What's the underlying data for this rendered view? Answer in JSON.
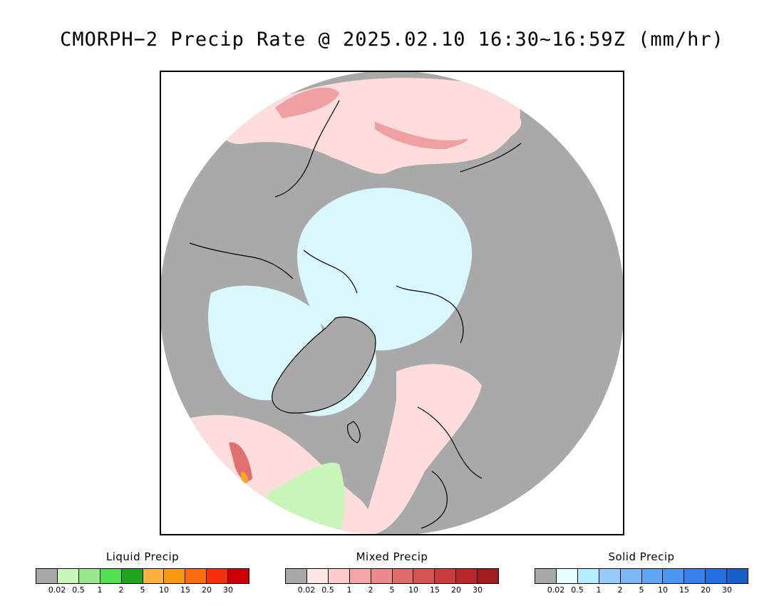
{
  "title": "CMORPH−2 Precip Rate @ 2025.02.10 16:30~16:59Z (mm/hr)",
  "map": {
    "projection": "polar-stereographic-north",
    "colors": {
      "land_no_precip": "#a9a9a9",
      "solid_light": "#d8f8fb",
      "mixed_light": "#fddcdc",
      "mixed_mid": "#f0a0a0",
      "mixed_heavy": "#e07070",
      "liquid_light": "#c8f5b8",
      "liquid_heavy": "#f6a623",
      "coastline": "#000000"
    }
  },
  "legends": [
    {
      "title": "Liquid Precip",
      "colors": [
        "#a9a9a9",
        "#c8f5b8",
        "#96e98a",
        "#52df52",
        "#1ea51e",
        "#fbb13a",
        "#f99a10",
        "#f96d0e",
        "#f5300c",
        "#cc0000"
      ],
      "ticks": [
        "0.02",
        "0.5",
        "1",
        "2",
        "5",
        "10",
        "15",
        "20",
        "30"
      ]
    },
    {
      "title": "Mixed Precip",
      "colors": [
        "#a9a9a9",
        "#fde6e6",
        "#fccaca",
        "#f4a6a6",
        "#ec8a8a",
        "#e06b6b",
        "#d65454",
        "#c83c3c",
        "#b82a2a",
        "#a01c1c"
      ],
      "ticks": [
        "0.02",
        "0.5",
        "1",
        "2",
        "5",
        "10",
        "15",
        "20",
        "30"
      ]
    },
    {
      "title": "Solid Precip",
      "colors": [
        "#a9a9a9",
        "#e4fcfe",
        "#b4eefc",
        "#96cdf8",
        "#7ab8f6",
        "#5ea6f4",
        "#4a96f0",
        "#3682ea",
        "#2470e0",
        "#1660c8"
      ],
      "ticks": [
        "0.02",
        "0.5",
        "1",
        "2",
        "5",
        "10",
        "15",
        "20",
        "30"
      ]
    }
  ]
}
